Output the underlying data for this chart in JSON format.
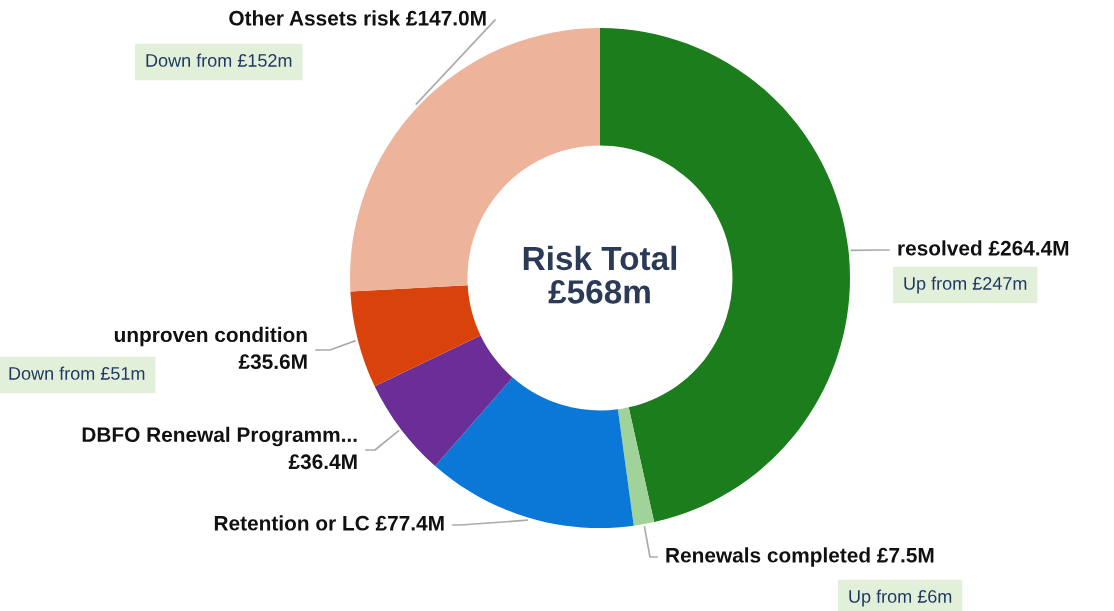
{
  "chart_data": {
    "type": "donut",
    "title": "Risk Total\n£568m",
    "categories": [
      "resolved",
      "Renewals completed",
      "Retention or LC",
      "DBFO Renewal Programm...",
      "unproven condition",
      "Other Assets risk"
    ],
    "values": [
      264.4,
      7.5,
      77.4,
      36.4,
      35.6,
      147.0
    ],
    "value_labels": [
      "£264.4M",
      "£7.5M",
      "£77.4M",
      "£36.4M",
      "£35.6M",
      "£147.0M"
    ],
    "colors": [
      "#1b7d1b",
      "#9fd39a",
      "#0b78d8",
      "#6b2d96",
      "#d9420b",
      "#eeb39b"
    ],
    "annotations": [
      "Up from £247m",
      "Up from £6m",
      "Down from £51m",
      "Down from £152m"
    ],
    "legend": false
  }
}
